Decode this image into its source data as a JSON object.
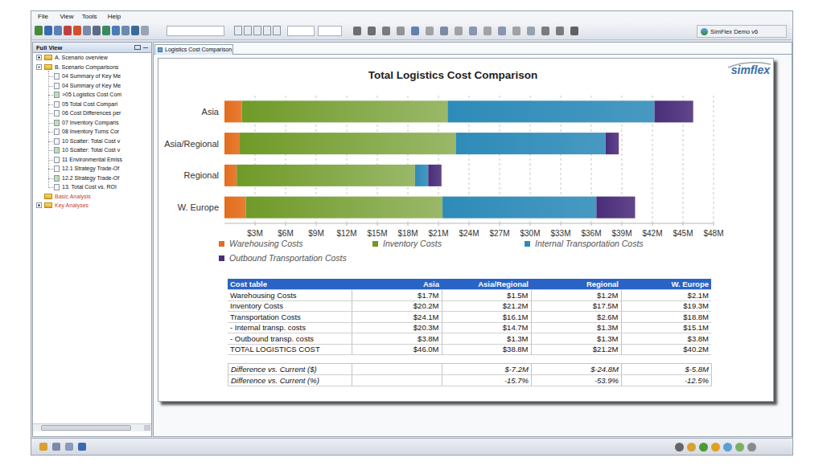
{
  "window": {
    "menu": [
      "File",
      "View",
      "Tools",
      "Help"
    ],
    "profile": "SimFlex Demo v6"
  },
  "navigator": {
    "title": "Full View",
    "items": [
      {
        "label": "A. Scenario overview",
        "expanded": false
      },
      {
        "label": "B. Scenario Comparisons",
        "expanded": true,
        "children": [
          {
            "label": "04 Summary of Key Me"
          },
          {
            "label": "04 Summary of Key Me"
          },
          {
            "label": ">05 Logistics Cost Com"
          },
          {
            "label": "05 Total Cost Compari"
          },
          {
            "label": "06 Cost Differences per"
          },
          {
            "label": "07 Inventory Comparis"
          },
          {
            "label": "08 Inventory Turns Cor"
          },
          {
            "label": "10 Scatter: Total Cost v"
          },
          {
            "label": "10 Scatter: Total Cost v"
          },
          {
            "label": "11 Environmental Emiss"
          },
          {
            "label": "12.1 Strategy Trade-Of"
          },
          {
            "label": "12.2 Strategy Trade-Of"
          },
          {
            "label": "13. Total Cost vs. ROI"
          }
        ]
      },
      {
        "label": "Basic Analysis"
      },
      {
        "label": "Key Analyses",
        "expanded": false
      }
    ]
  },
  "tab": "Logistics Cost Comparison",
  "logo": "simflex",
  "chart_data": {
    "type": "bar",
    "orientation": "horizontal",
    "stacked": true,
    "title": "Total Logistics Cost Comparison",
    "categories": [
      "Asia",
      "Asia/Regional",
      "Regional",
      "W. Europe"
    ],
    "series": [
      {
        "name": "Warehousing Costs",
        "color": "#e36c1b",
        "values": [
          1.7,
          1.5,
          1.2,
          2.1
        ]
      },
      {
        "name": "Inventory Costs",
        "color": "#6f9a28",
        "values": [
          20.2,
          21.2,
          17.5,
          19.3
        ]
      },
      {
        "name": "Internal Transportation Costs",
        "color": "#2e8bb8",
        "values": [
          20.3,
          14.7,
          1.3,
          15.1
        ]
      },
      {
        "name": "Outbound Transportation Costs",
        "color": "#4a2d7a",
        "values": [
          3.8,
          1.3,
          1.3,
          3.8
        ]
      }
    ],
    "xlim": [
      0,
      48
    ],
    "xticks": [
      {
        "value": 3,
        "label": "$3M"
      },
      {
        "value": 6,
        "label": "$6M"
      },
      {
        "value": 9,
        "label": "$9M"
      },
      {
        "value": 12,
        "label": "$12M"
      },
      {
        "value": 15,
        "label": "$15M"
      },
      {
        "value": 18,
        "label": "$18M"
      },
      {
        "value": 21,
        "label": "$21M"
      },
      {
        "value": 24,
        "label": "$24M"
      },
      {
        "value": 27,
        "label": "$27M"
      },
      {
        "value": 30,
        "label": "$30M"
      },
      {
        "value": 33,
        "label": "$33M"
      },
      {
        "value": 36,
        "label": "$36M"
      },
      {
        "value": 39,
        "label": "$39M"
      },
      {
        "value": 42,
        "label": "$42M"
      },
      {
        "value": 45,
        "label": "$45M"
      },
      {
        "value": 48,
        "label": "$48M"
      }
    ],
    "grid": true,
    "legend": "bottom"
  },
  "table": {
    "header": [
      "Cost table",
      "Asia",
      "Asia/Regional",
      "Regional",
      "W. Europe"
    ],
    "rows": [
      [
        "Warehousing Costs",
        "$1.7M",
        "$1.5M",
        "$1.2M",
        "$2.1M"
      ],
      [
        "Inventory Costs",
        "$20.2M",
        "$21.2M",
        "$17.5M",
        "$19.3M"
      ],
      [
        "Transportation Costs",
        "$24.1M",
        "$16.1M",
        "$2.6M",
        "$18.8M"
      ],
      [
        "- Internal transp. costs",
        "$20.3M",
        "$14.7M",
        "$1.3M",
        "$15.1M"
      ],
      [
        "- Outbound transp. costs",
        "$3.8M",
        "$1.3M",
        "$1.3M",
        "$3.8M"
      ],
      [
        "TOTAL LOGISTICS COST",
        "$46.0M",
        "$38.8M",
        "$21.2M",
        "$40.2M"
      ]
    ],
    "comparison_rows": [
      [
        "Difference vs. Current ($)",
        null,
        "$-7.2M",
        "$-24.8M",
        "$-5.8M"
      ],
      [
        "Difference vs. Current (%)",
        null,
        "-15.7%",
        "-53.9%",
        "-12.5%"
      ]
    ]
  }
}
